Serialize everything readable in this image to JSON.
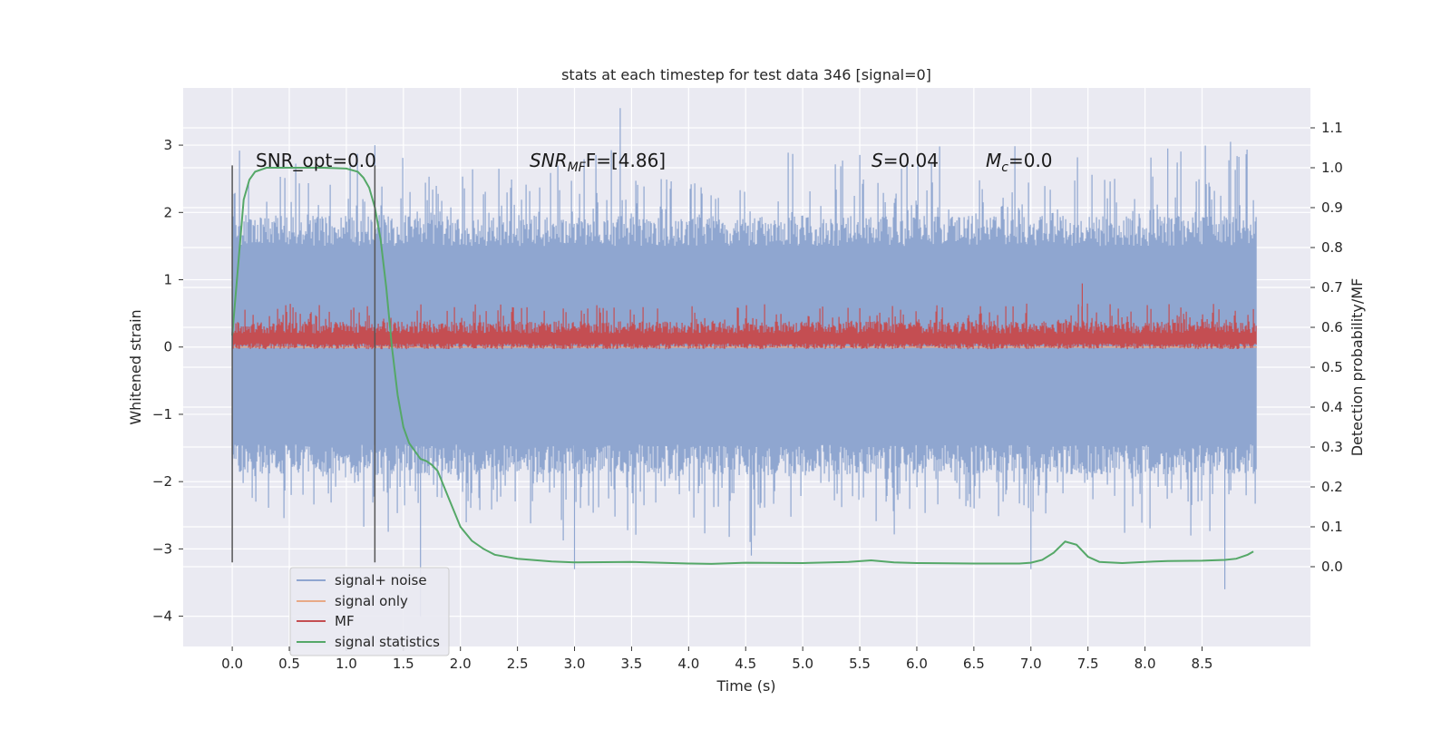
{
  "chart_data": {
    "type": "line",
    "title": "stats at each timestep for test data 346 [signal=0]",
    "xlabel": "Time (s)",
    "ylabel_left": "Whitened strain",
    "ylabel_right": "Detection probability/MF",
    "xlim": [
      -0.43,
      9.45
    ],
    "ylim_left": [
      -4.45,
      3.85
    ],
    "ylim_right": [
      -0.2,
      1.2
    ],
    "x_ticks": [
      "0.0",
      "0.5",
      "1.0",
      "1.5",
      "2.0",
      "2.5",
      "3.0",
      "3.5",
      "4.0",
      "4.5",
      "5.0",
      "5.5",
      "6.0",
      "6.5",
      "7.0",
      "7.5",
      "8.0",
      "8.5"
    ],
    "y_left_ticks": [
      "3",
      "2",
      "1",
      "0",
      "−1",
      "−2",
      "−3",
      "−4"
    ],
    "y_right_ticks": [
      "1.1",
      "1.0",
      "0.9",
      "0.8",
      "0.7",
      "0.6",
      "0.5",
      "0.4",
      "0.3",
      "0.2",
      "0.1",
      "0.0"
    ],
    "grid": true,
    "legend_placement": "lower-left",
    "annotations": {
      "snr_opt": "SNR_opt=0.0",
      "snr_mf_main": "SNR",
      "snr_mf_sub": "MF",
      "snr_mf_rest": "F=[4.86]",
      "s_main": "S",
      "s_rest": "=0.04",
      "mc_main": "M",
      "mc_sub": "c",
      "mc_rest": "=0.0"
    },
    "vertical_markers": [
      0.0,
      1.25
    ],
    "series": [
      {
        "name": "signal+ noise",
        "color": "#8fa6d0",
        "axis": "left",
        "x_range": [
          0.0,
          8.98
        ],
        "band_inner": [
          -1.45,
          1.5
        ],
        "typical_extremes": [
          -2.3,
          2.4
        ],
        "max": 3.55,
        "min": -3.6
      },
      {
        "name": "signal only",
        "color": "#e8a987",
        "axis": "left",
        "x_range": [
          0.0,
          8.98
        ],
        "values": "0 throughout"
      },
      {
        "name": "MF",
        "color": "#c44e52",
        "axis": "right",
        "x_range": [
          0.0,
          8.98
        ],
        "baseline": 0.57,
        "typical_peak": 0.66,
        "max": 0.71
      },
      {
        "name": "signal statistics",
        "color": "#55a868",
        "axis": "right",
        "x": [
          0.0,
          0.05,
          0.1,
          0.15,
          0.2,
          0.3,
          0.5,
          0.8,
          1.0,
          1.1,
          1.15,
          1.2,
          1.25,
          1.3,
          1.35,
          1.4,
          1.45,
          1.5,
          1.55,
          1.6,
          1.65,
          1.7,
          1.75,
          1.8,
          1.9,
          2.0,
          2.1,
          2.2,
          2.3,
          2.5,
          2.8,
          3.0,
          3.5,
          4.0,
          4.2,
          4.5,
          5.0,
          5.4,
          5.6,
          5.8,
          6.0,
          6.5,
          6.9,
          7.0,
          7.1,
          7.2,
          7.3,
          7.4,
          7.5,
          7.6,
          7.8,
          8.0,
          8.2,
          8.5,
          8.7,
          8.8,
          8.9,
          8.95
        ],
        "y": [
          0.58,
          0.75,
          0.92,
          0.97,
          0.99,
          1.0,
          1.0,
          1.0,
          0.998,
          0.99,
          0.975,
          0.95,
          0.9,
          0.82,
          0.7,
          0.55,
          0.43,
          0.35,
          0.31,
          0.29,
          0.27,
          0.265,
          0.255,
          0.24,
          0.17,
          0.1,
          0.065,
          0.045,
          0.03,
          0.02,
          0.013,
          0.011,
          0.012,
          0.008,
          0.007,
          0.01,
          0.009,
          0.012,
          0.016,
          0.011,
          0.009,
          0.008,
          0.008,
          0.01,
          0.017,
          0.035,
          0.063,
          0.055,
          0.025,
          0.012,
          0.009,
          0.012,
          0.014,
          0.015,
          0.017,
          0.02,
          0.03,
          0.038
        ]
      }
    ]
  }
}
